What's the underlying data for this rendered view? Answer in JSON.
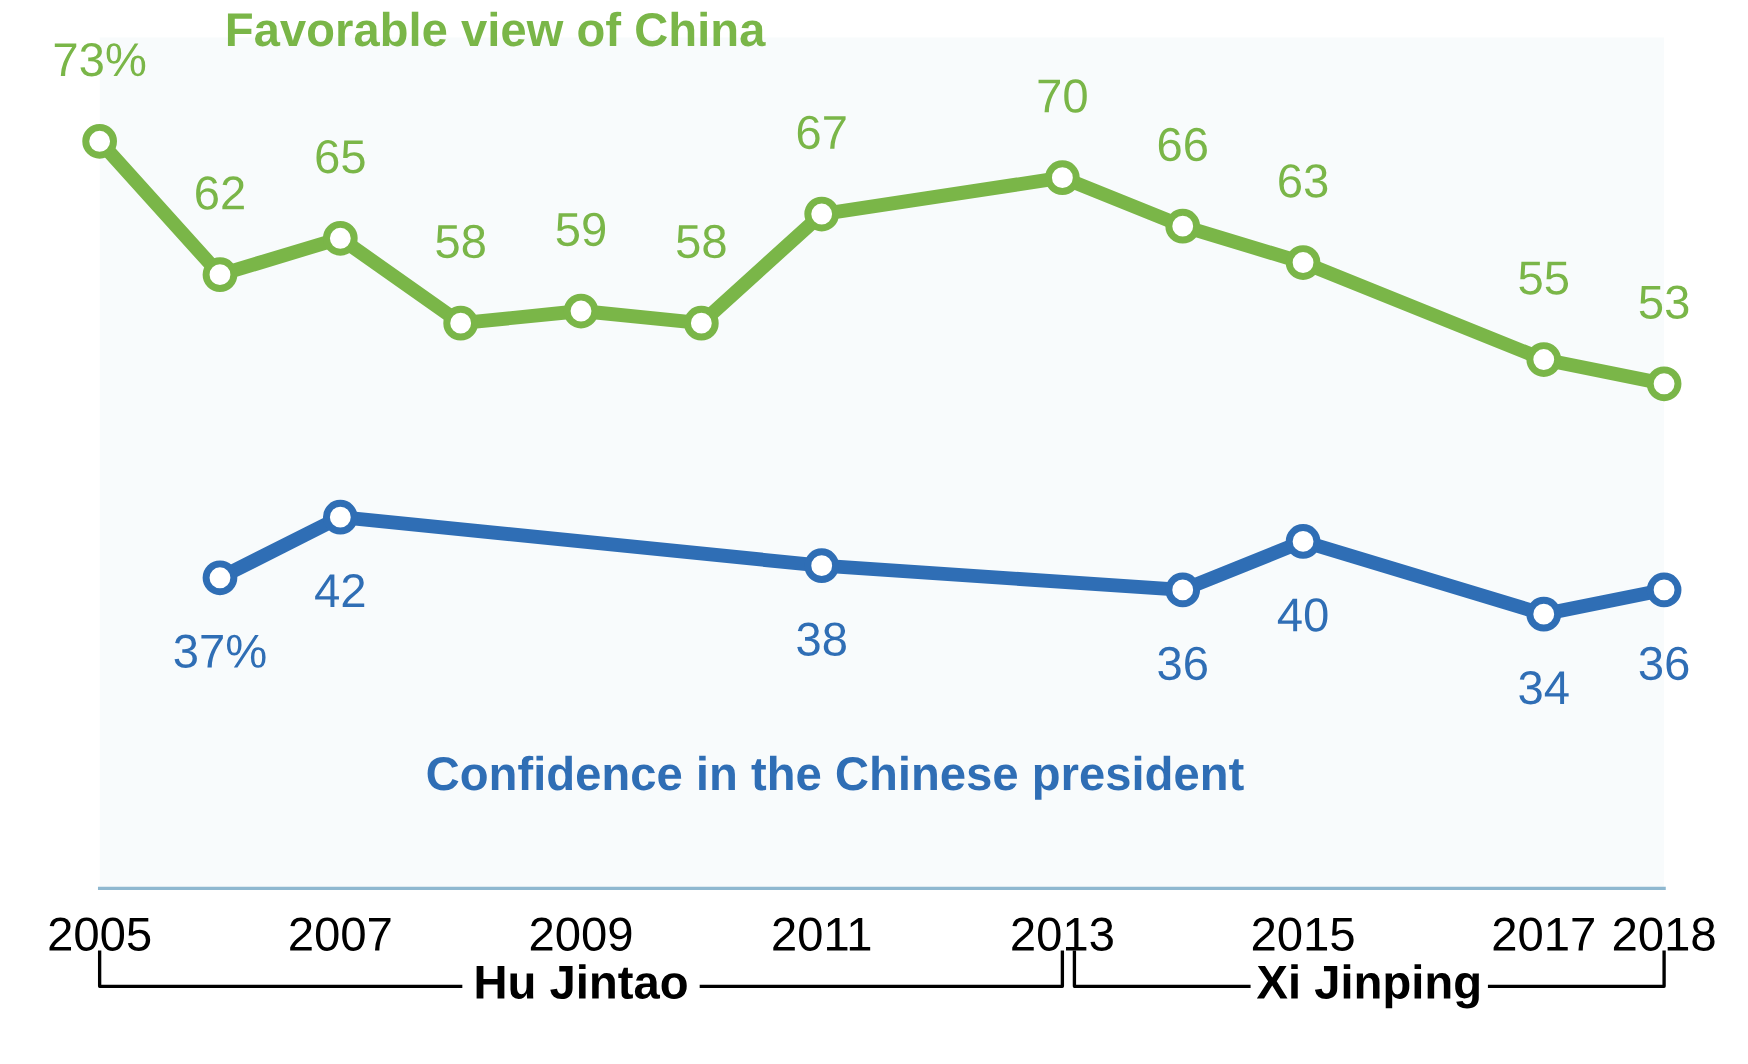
{
  "chart_data": {
    "type": "line",
    "xlim": [
      2005,
      2018
    ],
    "xticks": [
      2005,
      2007,
      2009,
      2011,
      2013,
      2015,
      2017,
      2018
    ],
    "grid": false,
    "marker": "circle",
    "line_style": "solid",
    "series": [
      {
        "name": "Favorable view of China",
        "color": "#7ab648",
        "x": [
          2005,
          2006,
          2007,
          2008,
          2009,
          2010,
          2011,
          2013,
          2014,
          2015,
          2017,
          2018
        ],
        "values": [
          73,
          62,
          65,
          58,
          59,
          58,
          67,
          70,
          66,
          63,
          55,
          53
        ],
        "value_labels": [
          "73%",
          "62",
          "65",
          "58",
          "59",
          "58",
          "67",
          "70",
          "66",
          "63",
          "55",
          "53"
        ]
      },
      {
        "name": "Confidence in the Chinese president",
        "color": "#2f6eb5",
        "x": [
          2006,
          2007,
          2011,
          2014,
          2015,
          2017,
          2018
        ],
        "values": [
          37,
          42,
          38,
          36,
          40,
          34,
          36
        ],
        "value_labels": [
          "37%",
          "42",
          "38",
          "36",
          "40",
          "34",
          "36"
        ]
      }
    ],
    "bands": [
      {
        "axis": "x",
        "from": 2005,
        "to": 2013,
        "label": "Hu Jintao"
      },
      {
        "axis": "x",
        "from": 2013,
        "to": 2018,
        "label": "Xi Jinping"
      }
    ]
  }
}
